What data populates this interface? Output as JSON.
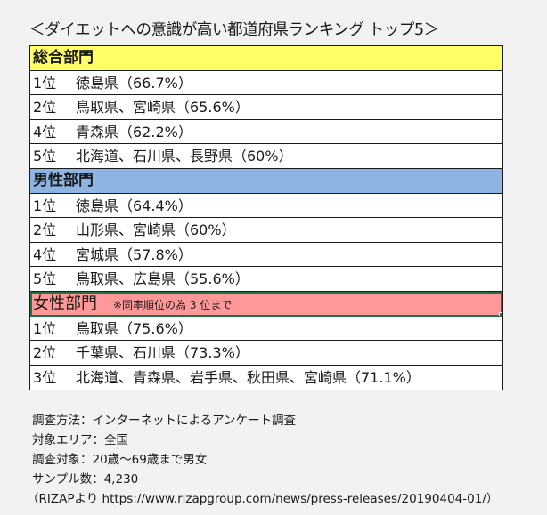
{
  "title": "＜ダイエットへの意識が高い都道府県ランキング トップ5＞",
  "sections": {
    "overall": {
      "header": "総合部門",
      "rows": [
        {
          "rank": "1位",
          "value": "徳島県（66.7%）"
        },
        {
          "rank": "2位",
          "value": "鳥取県、宮崎県（65.6%）"
        },
        {
          "rank": "4位",
          "value": "青森県（62.2%）"
        },
        {
          "rank": "5位",
          "value": "北海道、石川県、長野県（60%）"
        }
      ]
    },
    "male": {
      "header": "男性部門",
      "rows": [
        {
          "rank": "1位",
          "value": "徳島県（64.4%）"
        },
        {
          "rank": "2位",
          "value": "山形県、宮崎県（60%）"
        },
        {
          "rank": "4位",
          "value": "宮城県（57.8%）"
        },
        {
          "rank": "5位",
          "value": "鳥取県、広島県（55.6%）"
        }
      ]
    },
    "female": {
      "header": "女性部門",
      "note": "※同率順位の為 3 位まで",
      "rows": [
        {
          "rank": "1位",
          "value": "鳥取県（75.6%）"
        },
        {
          "rank": "2位",
          "value": "千葉県、石川県（73.3%）"
        },
        {
          "rank": "3位",
          "value": "北海道、青森県、岩手県、秋田県、宮崎県（71.1%）"
        }
      ]
    }
  },
  "footer": {
    "method": "調査方法：インターネットによるアンケート調査",
    "area": "対象エリア：全国",
    "subjects": "調査対象：20歳〜69歳まで男女",
    "sample": "サンプル数：4,230",
    "source": "（RIZAPより https://www.rizapgroup.com/news/press-releases/20190404-01/）"
  },
  "colors": {
    "overall_header": "#ffff66",
    "male_header": "#8db4e2",
    "female_header": "#ff9999",
    "selection": "#217346"
  }
}
